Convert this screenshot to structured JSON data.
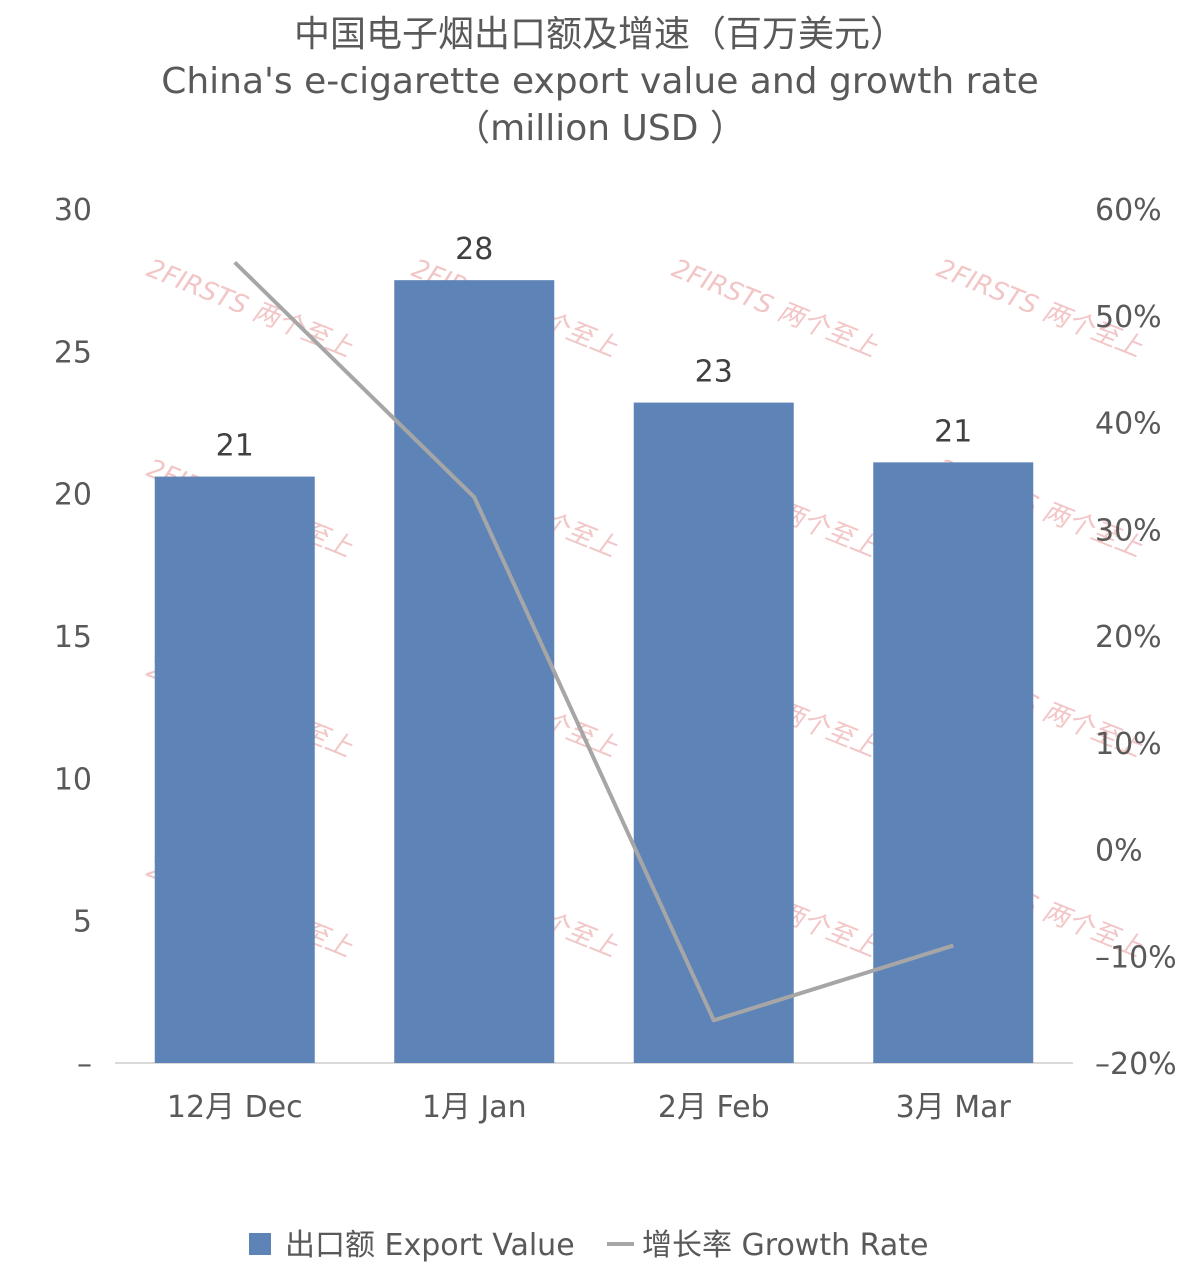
{
  "chart_data": {
    "type": "bar",
    "title": "中国电子烟出口额及增速（百万美元）",
    "subtitle": "China's e-cigarette export value and growth rate",
    "subtitle2": "（million USD ）",
    "categories": [
      "12月 Dec",
      "1月 Jan",
      "2月 Feb",
      "3月 Mar"
    ],
    "series": [
      {
        "name": "出口额 Export Value",
        "type": "bar",
        "axis": "left",
        "color": "#5e84b7",
        "values": [
          20.6,
          27.5,
          23.2,
          21.1
        ],
        "labels": [
          "21",
          "28",
          "23",
          "21"
        ]
      },
      {
        "name": "增长率 Growth Rate",
        "type": "line",
        "axis": "right",
        "color": "#a6a6a6",
        "values": [
          55,
          33,
          -16,
          -9
        ]
      }
    ],
    "ylim": [
      0,
      30
    ],
    "yticks": [
      "–",
      "5",
      "10",
      "15",
      "20",
      "25",
      "30"
    ],
    "y2lim": [
      -20,
      60
    ],
    "y2ticks": [
      "–20%",
      "–10%",
      "0%",
      "10%",
      "20%",
      "30%",
      "40%",
      "50%",
      "60%"
    ],
    "legend_position": "bottom",
    "grid": false,
    "watermark": "2FIRSTS 两个至上"
  }
}
